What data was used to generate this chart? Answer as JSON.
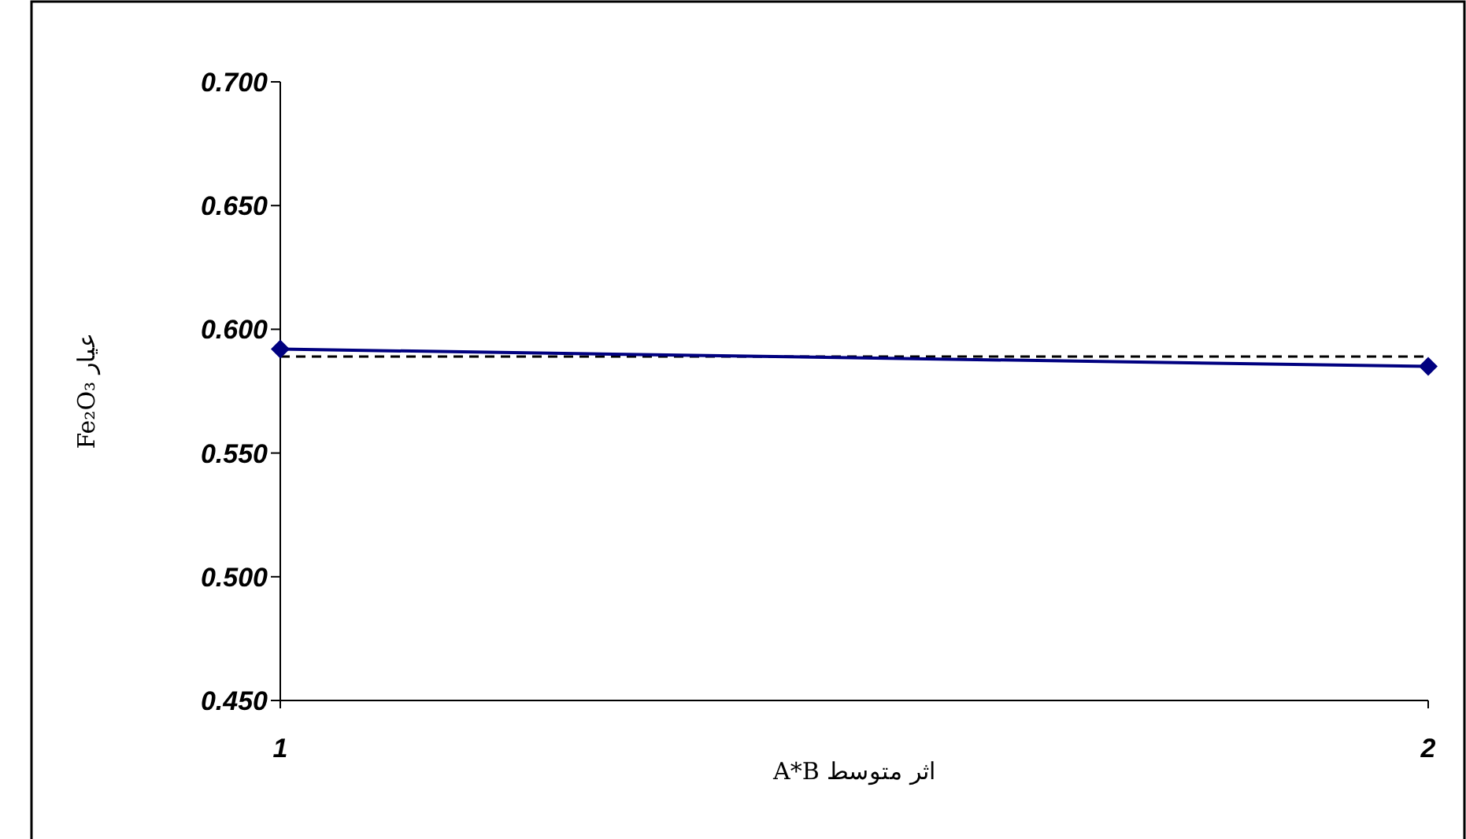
{
  "chart_data": {
    "type": "line",
    "xlabel": "اثر متوسط A*B",
    "ylabel": "عیار Fe₂O₃",
    "categories": [
      "1",
      "2"
    ],
    "series": [
      {
        "color": "#000080",
        "values": [
          0.592,
          0.585
        ]
      }
    ],
    "marker": "diamond",
    "line_style": "solid",
    "ylim": [
      0.45,
      0.7
    ],
    "yticks": [
      {
        "value": 0.45,
        "label": "0.450"
      },
      {
        "value": 0.5,
        "label": "0.500"
      },
      {
        "value": 0.55,
        "label": "0.550"
      },
      {
        "value": 0.6,
        "label": "0.600"
      },
      {
        "value": 0.65,
        "label": "0.650"
      },
      {
        "value": 0.7,
        "label": "0.700"
      }
    ],
    "ref_lines": [
      {
        "axis": "y",
        "value": 0.589,
        "color": "#000000",
        "line_style": "dashed"
      }
    ],
    "grid": false
  }
}
